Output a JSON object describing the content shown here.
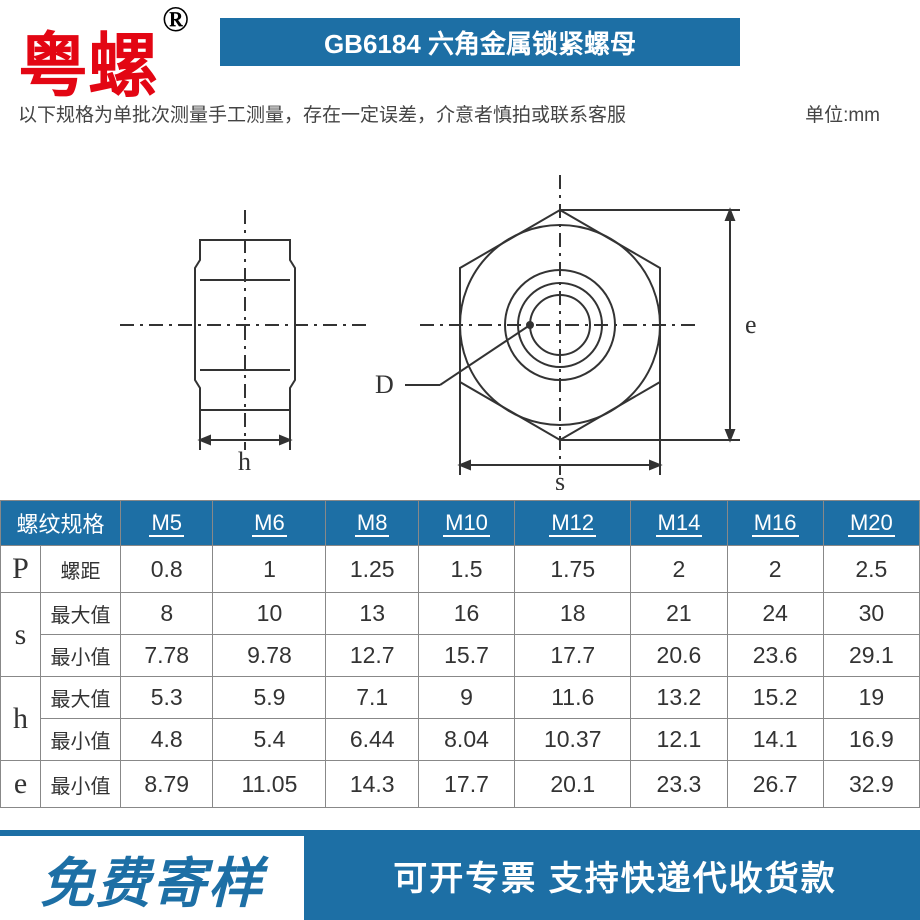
{
  "brand": {
    "text": "粤螺",
    "symbol": "®",
    "color": "#e30613"
  },
  "title": {
    "text": "GB6184 六角金属锁紧螺母",
    "bg": "#1d6fa5",
    "color": "#ffffff"
  },
  "note": "以下规格为单批次测量手工测量，存在一定误差，介意者慎拍或联系客服",
  "unit": "单位:mm",
  "diagram": {
    "labels": {
      "h": "h",
      "D": "D",
      "s": "s",
      "e": "e"
    },
    "stroke": "#333333"
  },
  "table": {
    "header_bg": "#1d6fa5",
    "header_color": "#ffffff",
    "border_color": "#888888",
    "col1_header": "螺纹规格",
    "size_headers": [
      "M5",
      "M6",
      "M8",
      "M10",
      "M12",
      "M14",
      "M16",
      "M20"
    ],
    "groups": [
      {
        "sym": "P",
        "rows": [
          {
            "label": "螺距",
            "vals": [
              "0.8",
              "1",
              "1.25",
              "1.5",
              "1.75",
              "2",
              "2",
              "2.5"
            ]
          }
        ]
      },
      {
        "sym": "s",
        "rows": [
          {
            "label": "最大值",
            "vals": [
              "8",
              "10",
              "13",
              "16",
              "18",
              "21",
              "24",
              "30"
            ]
          },
          {
            "label": "最小值",
            "vals": [
              "7.78",
              "9.78",
              "12.7",
              "15.7",
              "17.7",
              "20.6",
              "23.6",
              "29.1"
            ]
          }
        ]
      },
      {
        "sym": "h",
        "rows": [
          {
            "label": "最大值",
            "vals": [
              "5.3",
              "5.9",
              "7.1",
              "9",
              "11.6",
              "13.2",
              "15.2",
              "19"
            ]
          },
          {
            "label": "最小值",
            "vals": [
              "4.8",
              "5.4",
              "6.44",
              "8.04",
              "10.37",
              "12.1",
              "14.1",
              "16.9"
            ]
          }
        ]
      },
      {
        "sym": "e",
        "rows": [
          {
            "label": "最小值",
            "vals": [
              "8.79",
              "11.05",
              "14.3",
              "17.7",
              "20.1",
              "23.3",
              "26.7",
              "32.9"
            ]
          }
        ]
      }
    ]
  },
  "footer": {
    "left": "免费寄样",
    "right": "可开专票 支持快递代收货款",
    "bg": "#1d6fa5",
    "text_color": "#ffffff",
    "left_color": "#1d6fa5"
  }
}
